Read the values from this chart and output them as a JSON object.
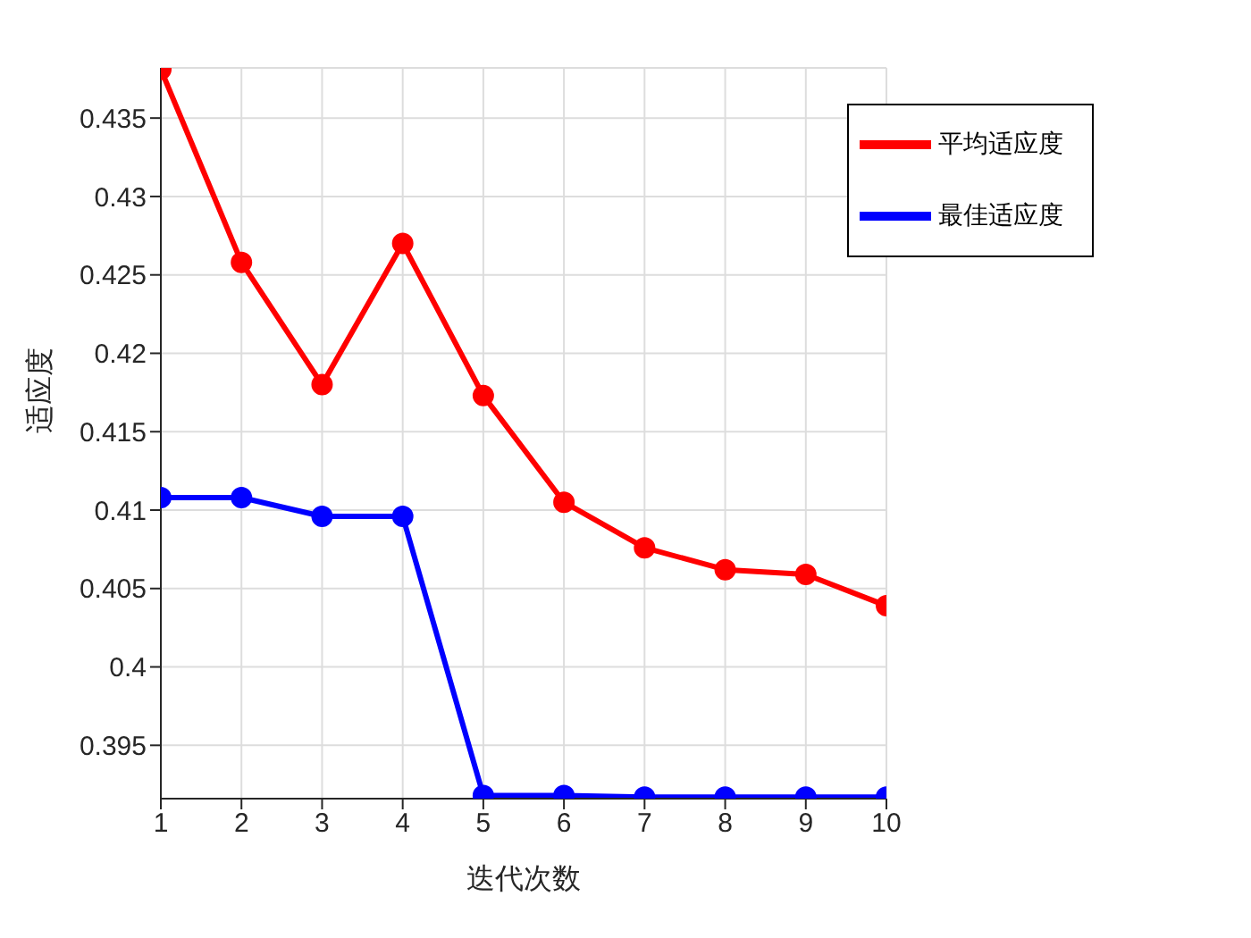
{
  "chart_data": {
    "type": "line",
    "xlabel": "迭代次数",
    "ylabel": "适应度",
    "x": [
      1,
      2,
      3,
      4,
      5,
      6,
      7,
      8,
      9,
      10
    ],
    "series": [
      {
        "name": "平均适应度",
        "color": "#ff0000",
        "values": [
          0.4381,
          0.4258,
          0.418,
          0.427,
          0.4173,
          0.4105,
          0.4076,
          0.4062,
          0.4059,
          0.4039
        ]
      },
      {
        "name": "最佳适应度",
        "color": "#0000ff",
        "values": [
          0.4108,
          0.4108,
          0.4096,
          0.4096,
          0.3918,
          0.3918,
          0.3917,
          0.3917,
          0.3917,
          0.3917
        ]
      }
    ],
    "xlim": [
      1,
      10
    ],
    "xticks": [
      1,
      2,
      3,
      4,
      5,
      6,
      7,
      8,
      9,
      10
    ],
    "ylim": [
      0.3916,
      0.4382
    ],
    "yticks": [
      0.395,
      0.4,
      0.405,
      0.41,
      0.415,
      0.42,
      0.425,
      0.43,
      0.435
    ],
    "grid": true,
    "legend": "top right",
    "marker": "circle",
    "line_style": "solid"
  }
}
